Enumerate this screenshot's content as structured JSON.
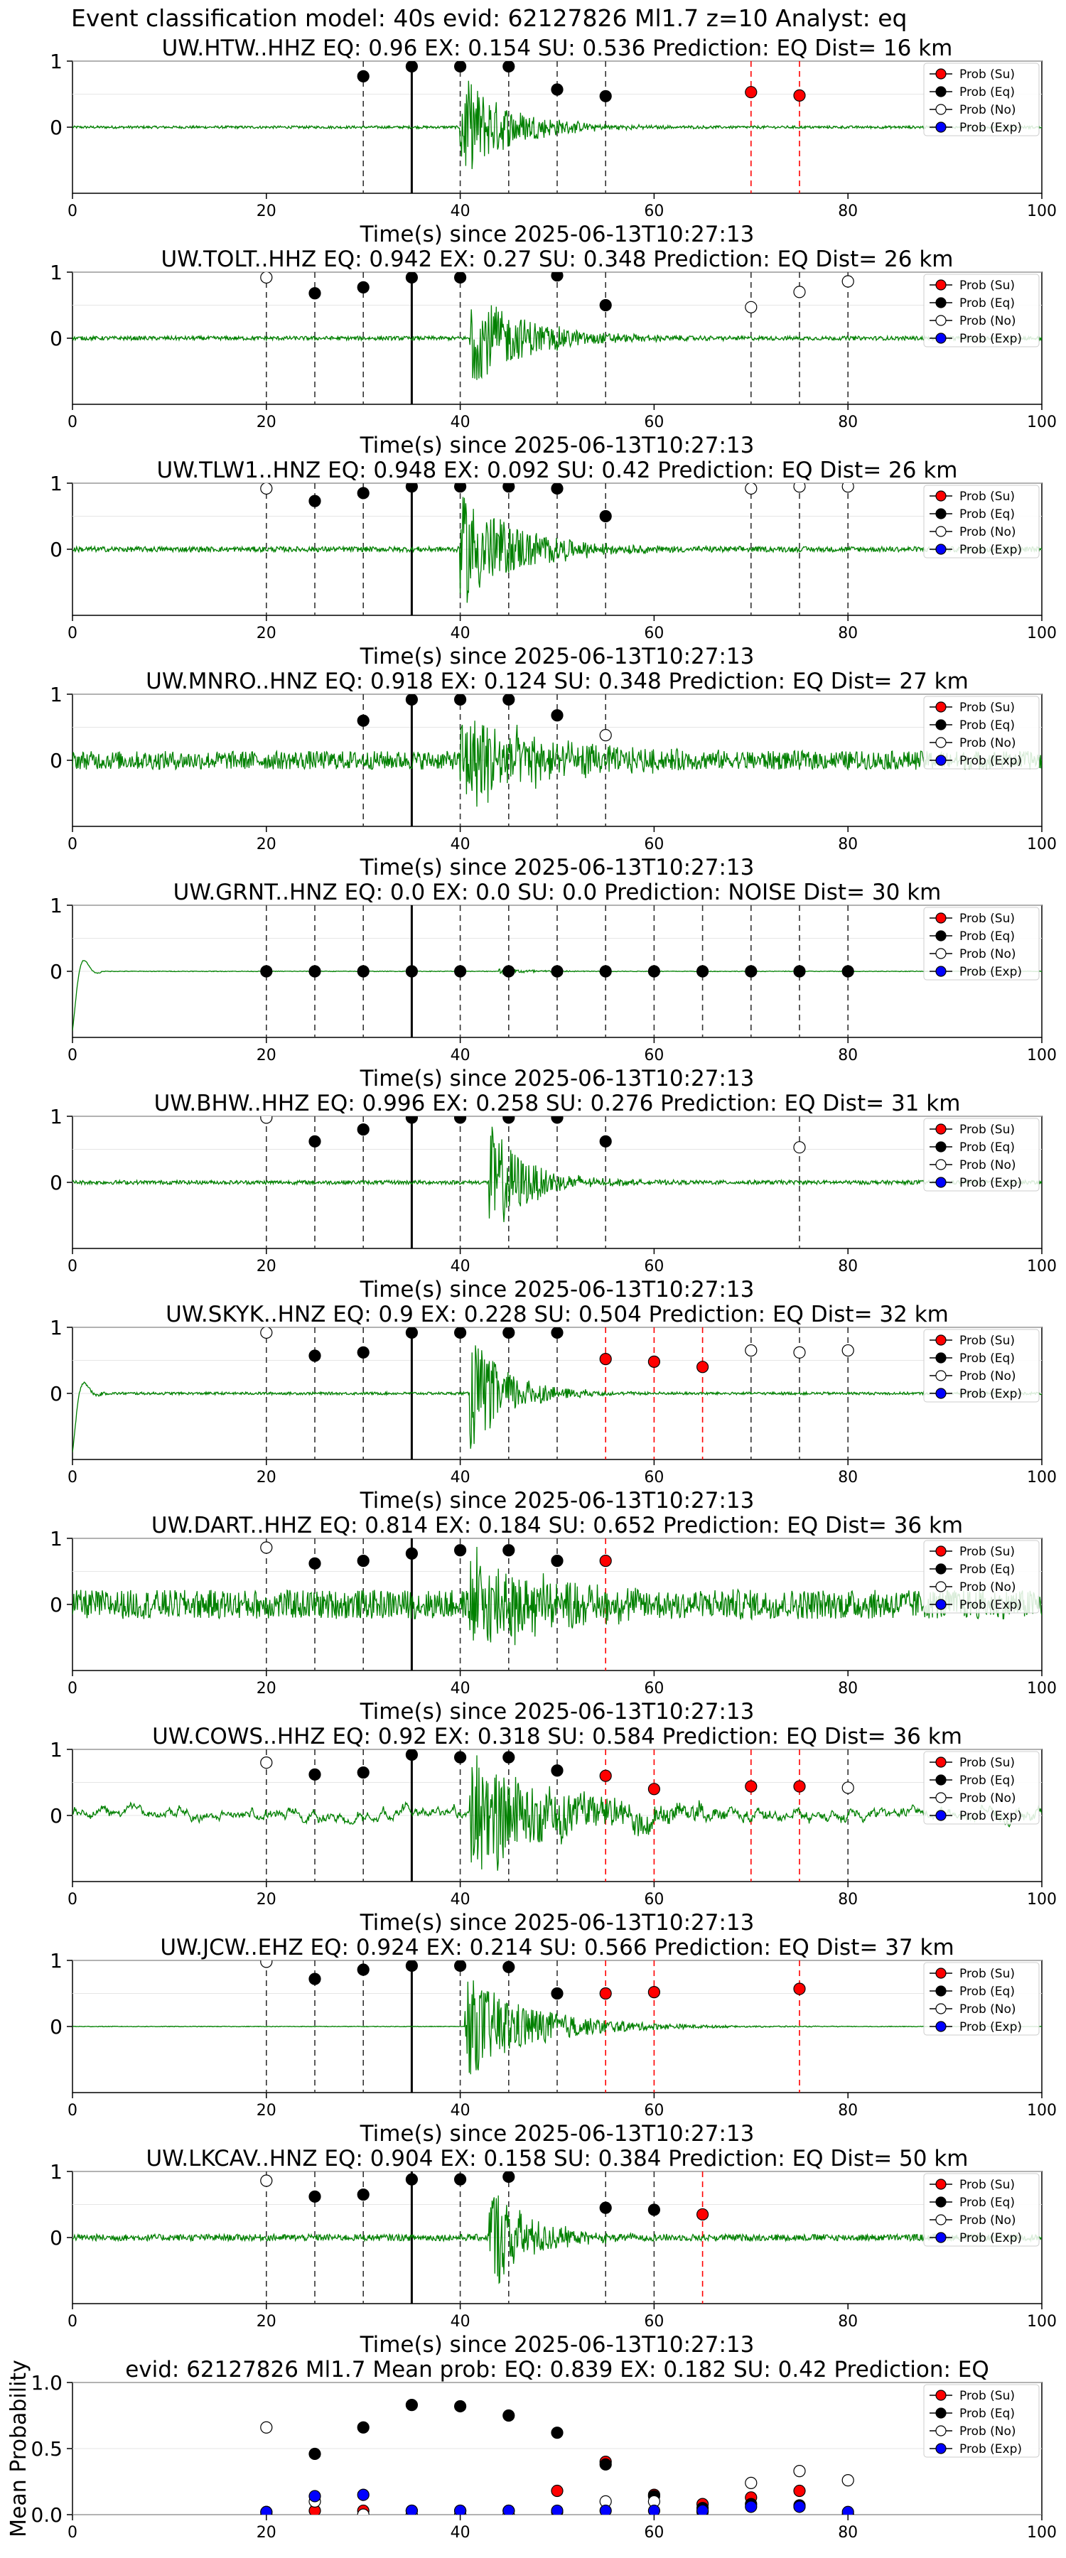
{
  "figure_title": "Event classification model: 40s evid: 62127826 Ml1.7 z=10 Analyst: eq",
  "colors": {
    "trace": "#008000",
    "su": "#ff0000",
    "eq": "#000000",
    "no": "#ffffff",
    "exp": "#0000ff",
    "su_line": "#ff0000",
    "eq_line": "#333333",
    "pick": "#000000"
  },
  "legend": [
    "Prob (Su)",
    "Prob (Eq)",
    "Prob (No)",
    "Prob (Exp)"
  ],
  "chart_data": [
    {
      "type": "scatter",
      "title": "UW.HTW..HHZ   EQ: 0.96  EX: 0.154  SU: 0.536   Prediction: EQ    Dist= 16 km",
      "xlabel": "Time(s) since 2025-06-13T10:27:13",
      "ylabel": "",
      "xlim": [
        0,
        100
      ],
      "ylim": [
        -1,
        1
      ],
      "xticks": [
        "0",
        "20",
        "40",
        "60",
        "80",
        "100"
      ],
      "yticks": [
        "1",
        "0"
      ],
      "pick_time": 35,
      "waveform": {
        "noise": 0.02,
        "onset": 40,
        "amp": 0.85,
        "decay": 5
      },
      "points": [
        {
          "x": 30,
          "y": 0.77,
          "c": "eq"
        },
        {
          "x": 35,
          "y": 0.92,
          "c": "eq"
        },
        {
          "x": 40,
          "y": 0.92,
          "c": "eq"
        },
        {
          "x": 45,
          "y": 0.92,
          "c": "eq"
        },
        {
          "x": 50,
          "y": 0.57,
          "c": "eq"
        },
        {
          "x": 55,
          "y": 0.47,
          "c": "eq"
        },
        {
          "x": 70,
          "y": 0.53,
          "c": "su"
        },
        {
          "x": 75,
          "y": 0.48,
          "c": "su"
        }
      ]
    },
    {
      "type": "scatter",
      "title": "UW.TOLT..HHZ   EQ: 0.942  EX: 0.27  SU: 0.348   Prediction: EQ    Dist= 26 km",
      "xlabel": "Time(s) since 2025-06-13T10:27:13",
      "ylabel": "",
      "xlim": [
        0,
        100
      ],
      "ylim": [
        -1,
        1
      ],
      "xticks": [
        "0",
        "20",
        "40",
        "60",
        "80",
        "100"
      ],
      "yticks": [
        "1",
        "0"
      ],
      "pick_time": 35,
      "waveform": {
        "noise": 0.03,
        "onset": 41,
        "amp": 0.75,
        "decay": 6
      },
      "points": [
        {
          "x": 20,
          "y": 0.92,
          "c": "no"
        },
        {
          "x": 25,
          "y": 0.68,
          "c": "eq"
        },
        {
          "x": 30,
          "y": 0.77,
          "c": "eq"
        },
        {
          "x": 35,
          "y": 0.92,
          "c": "eq"
        },
        {
          "x": 40,
          "y": 0.92,
          "c": "eq"
        },
        {
          "x": 50,
          "y": 0.95,
          "c": "eq"
        },
        {
          "x": 55,
          "y": 0.5,
          "c": "eq"
        },
        {
          "x": 70,
          "y": 0.47,
          "c": "no"
        },
        {
          "x": 75,
          "y": 0.7,
          "c": "no"
        },
        {
          "x": 80,
          "y": 0.86,
          "c": "no"
        }
      ]
    },
    {
      "type": "scatter",
      "title": "UW.TLW1..HNZ   EQ: 0.948  EX: 0.092  SU: 0.42   Prediction: EQ    Dist= 26 km",
      "xlabel": "Time(s) since 2025-06-13T10:27:13",
      "ylabel": "",
      "xlim": [
        0,
        100
      ],
      "ylim": [
        -1,
        1
      ],
      "xticks": [
        "0",
        "20",
        "40",
        "60",
        "80",
        "100"
      ],
      "yticks": [
        "1",
        "0"
      ],
      "pick_time": 35,
      "waveform": {
        "noise": 0.04,
        "onset": 40,
        "amp": 0.9,
        "decay": 6
      },
      "points": [
        {
          "x": 20,
          "y": 0.92,
          "c": "no"
        },
        {
          "x": 25,
          "y": 0.73,
          "c": "eq"
        },
        {
          "x": 30,
          "y": 0.85,
          "c": "eq"
        },
        {
          "x": 35,
          "y": 0.95,
          "c": "eq"
        },
        {
          "x": 40,
          "y": 0.95,
          "c": "eq"
        },
        {
          "x": 45,
          "y": 0.95,
          "c": "eq"
        },
        {
          "x": 50,
          "y": 0.92,
          "c": "eq"
        },
        {
          "x": 55,
          "y": 0.5,
          "c": "eq"
        },
        {
          "x": 70,
          "y": 0.92,
          "c": "no"
        },
        {
          "x": 75,
          "y": 0.95,
          "c": "no"
        },
        {
          "x": 80,
          "y": 0.95,
          "c": "no"
        }
      ]
    },
    {
      "type": "scatter",
      "title": "UW.MNRO..HNZ   EQ: 0.918  EX: 0.124  SU: 0.348   Prediction: EQ    Dist= 27 km",
      "xlabel": "Time(s) since 2025-06-13T10:27:13",
      "ylabel": "",
      "xlim": [
        0,
        100
      ],
      "ylim": [
        -1,
        1
      ],
      "xticks": [
        "0",
        "20",
        "40",
        "60",
        "80",
        "100"
      ],
      "yticks": [
        "1",
        "0"
      ],
      "pick_time": 35,
      "waveform": {
        "noise": 0.14,
        "onset": 40,
        "amp": 0.85,
        "decay": 8
      },
      "points": [
        {
          "x": 30,
          "y": 0.6,
          "c": "eq"
        },
        {
          "x": 35,
          "y": 0.92,
          "c": "eq"
        },
        {
          "x": 40,
          "y": 0.92,
          "c": "eq"
        },
        {
          "x": 45,
          "y": 0.92,
          "c": "eq"
        },
        {
          "x": 50,
          "y": 0.68,
          "c": "eq"
        },
        {
          "x": 55,
          "y": 0.38,
          "c": "no"
        }
      ]
    },
    {
      "type": "scatter",
      "title": "UW.GRNT..HNZ   EQ: 0.0  EX: 0.0  SU: 0.0   Prediction: NOISE    Dist= 30 km",
      "xlabel": "Time(s) since 2025-06-13T10:27:13",
      "ylabel": "",
      "xlim": [
        0,
        100
      ],
      "ylim": [
        -1,
        1
      ],
      "xticks": [
        "0",
        "20",
        "40",
        "60",
        "80",
        "100"
      ],
      "yticks": [
        "1",
        "0"
      ],
      "pick_time": 35,
      "waveform": {
        "noise": 0.005,
        "onset": 44,
        "amp": 0.05,
        "decay": 4,
        "startup": true
      },
      "points": [
        {
          "x": 20,
          "y": 0,
          "c": "eq"
        },
        {
          "x": 25,
          "y": 0,
          "c": "eq"
        },
        {
          "x": 30,
          "y": 0,
          "c": "eq"
        },
        {
          "x": 35,
          "y": 0,
          "c": "eq"
        },
        {
          "x": 40,
          "y": 0,
          "c": "eq"
        },
        {
          "x": 45,
          "y": 0,
          "c": "eq"
        },
        {
          "x": 50,
          "y": 0,
          "c": "eq"
        },
        {
          "x": 55,
          "y": 0,
          "c": "eq"
        },
        {
          "x": 60,
          "y": 0,
          "c": "eq"
        },
        {
          "x": 65,
          "y": 0,
          "c": "eq"
        },
        {
          "x": 70,
          "y": 0,
          "c": "eq"
        },
        {
          "x": 75,
          "y": 0,
          "c": "eq"
        },
        {
          "x": 80,
          "y": 0,
          "c": "eq"
        }
      ]
    },
    {
      "type": "scatter",
      "title": "UW.BHW..HHZ   EQ: 0.996  EX: 0.258  SU: 0.276   Prediction: EQ    Dist= 31 km",
      "xlabel": "Time(s) since 2025-06-13T10:27:13",
      "ylabel": "",
      "xlim": [
        0,
        100
      ],
      "ylim": [
        -1,
        1
      ],
      "xticks": [
        "0",
        "20",
        "40",
        "60",
        "80",
        "100"
      ],
      "yticks": [
        "1",
        "0"
      ],
      "pick_time": 35,
      "waveform": {
        "noise": 0.03,
        "onset": 43,
        "amp": 0.9,
        "decay": 4
      },
      "points": [
        {
          "x": 20,
          "y": 0.98,
          "c": "no"
        },
        {
          "x": 25,
          "y": 0.62,
          "c": "eq"
        },
        {
          "x": 30,
          "y": 0.8,
          "c": "eq"
        },
        {
          "x": 35,
          "y": 0.98,
          "c": "eq"
        },
        {
          "x": 40,
          "y": 0.98,
          "c": "eq"
        },
        {
          "x": 45,
          "y": 0.98,
          "c": "eq"
        },
        {
          "x": 50,
          "y": 0.98,
          "c": "eq"
        },
        {
          "x": 55,
          "y": 0.62,
          "c": "eq"
        },
        {
          "x": 75,
          "y": 0.53,
          "c": "no"
        }
      ]
    },
    {
      "type": "scatter",
      "title": "UW.SKYK..HNZ   EQ: 0.9  EX: 0.228  SU: 0.504   Prediction: EQ    Dist= 32 km",
      "xlabel": "Time(s) since 2025-06-13T10:27:13",
      "ylabel": "",
      "xlim": [
        0,
        100
      ],
      "ylim": [
        -1,
        1
      ],
      "xticks": [
        "0",
        "20",
        "40",
        "60",
        "80",
        "100"
      ],
      "yticks": [
        "1",
        "0"
      ],
      "pick_time": 35,
      "waveform": {
        "noise": 0.02,
        "onset": 41,
        "amp": 0.9,
        "decay": 4,
        "startup": true
      },
      "points": [
        {
          "x": 20,
          "y": 0.92,
          "c": "no"
        },
        {
          "x": 25,
          "y": 0.57,
          "c": "eq"
        },
        {
          "x": 30,
          "y": 0.62,
          "c": "eq"
        },
        {
          "x": 35,
          "y": 0.92,
          "c": "eq"
        },
        {
          "x": 40,
          "y": 0.92,
          "c": "eq"
        },
        {
          "x": 45,
          "y": 0.92,
          "c": "eq"
        },
        {
          "x": 50,
          "y": 0.92,
          "c": "eq"
        },
        {
          "x": 55,
          "y": 0.52,
          "c": "su"
        },
        {
          "x": 60,
          "y": 0.48,
          "c": "su"
        },
        {
          "x": 65,
          "y": 0.4,
          "c": "su"
        },
        {
          "x": 70,
          "y": 0.65,
          "c": "no"
        },
        {
          "x": 75,
          "y": 0.62,
          "c": "no"
        },
        {
          "x": 80,
          "y": 0.65,
          "c": "no"
        }
      ]
    },
    {
      "type": "scatter",
      "title": "UW.DART..HHZ   EQ: 0.814  EX: 0.184  SU: 0.652   Prediction: EQ    Dist= 36 km",
      "xlabel": "Time(s) since 2025-06-13T10:27:13",
      "ylabel": "",
      "xlim": [
        0,
        100
      ],
      "ylim": [
        -1,
        1
      ],
      "xticks": [
        "0",
        "20",
        "40",
        "60",
        "80",
        "100"
      ],
      "yticks": [
        "1",
        "0"
      ],
      "pick_time": 35,
      "waveform": {
        "noise": 0.22,
        "onset": 41,
        "amp": 0.8,
        "decay": 8
      },
      "points": [
        {
          "x": 20,
          "y": 0.86,
          "c": "no"
        },
        {
          "x": 25,
          "y": 0.62,
          "c": "eq"
        },
        {
          "x": 30,
          "y": 0.66,
          "c": "eq"
        },
        {
          "x": 35,
          "y": 0.77,
          "c": "eq"
        },
        {
          "x": 40,
          "y": 0.82,
          "c": "eq"
        },
        {
          "x": 45,
          "y": 0.82,
          "c": "eq"
        },
        {
          "x": 50,
          "y": 0.66,
          "c": "eq"
        },
        {
          "x": 55,
          "y": 0.66,
          "c": "su"
        }
      ]
    },
    {
      "type": "scatter",
      "title": "UW.COWS..HHZ   EQ: 0.92  EX: 0.318  SU: 0.584   Prediction: EQ    Dist= 36 km",
      "xlabel": "Time(s) since 2025-06-13T10:27:13",
      "ylabel": "",
      "xlim": [
        0,
        100
      ],
      "ylim": [
        -1,
        1
      ],
      "xticks": [
        "0",
        "20",
        "40",
        "60",
        "80",
        "100"
      ],
      "yticks": [
        "1",
        "0"
      ],
      "pick_time": 35,
      "waveform": {
        "noise": 0.25,
        "onset": 41,
        "amp": 0.95,
        "decay": 10,
        "lowfreq": true
      },
      "points": [
        {
          "x": 20,
          "y": 0.8,
          "c": "no"
        },
        {
          "x": 25,
          "y": 0.62,
          "c": "eq"
        },
        {
          "x": 30,
          "y": 0.65,
          "c": "eq"
        },
        {
          "x": 35,
          "y": 0.92,
          "c": "eq"
        },
        {
          "x": 40,
          "y": 0.88,
          "c": "eq"
        },
        {
          "x": 45,
          "y": 0.88,
          "c": "eq"
        },
        {
          "x": 50,
          "y": 0.68,
          "c": "eq"
        },
        {
          "x": 55,
          "y": 0.6,
          "c": "su"
        },
        {
          "x": 60,
          "y": 0.4,
          "c": "su"
        },
        {
          "x": 70,
          "y": 0.44,
          "c": "su"
        },
        {
          "x": 75,
          "y": 0.44,
          "c": "su"
        },
        {
          "x": 80,
          "y": 0.42,
          "c": "no"
        }
      ]
    },
    {
      "type": "scatter",
      "title": "UW.JCW..EHZ   EQ: 0.924  EX: 0.214  SU: 0.566   Prediction: EQ    Dist= 37 km",
      "xlabel": "Time(s) since 2025-06-13T10:27:13",
      "ylabel": "",
      "xlim": [
        0,
        100
      ],
      "ylim": [
        -1,
        1
      ],
      "xticks": [
        "0",
        "20",
        "40",
        "60",
        "80",
        "100"
      ],
      "yticks": [
        "1",
        "0"
      ],
      "pick_time": 35,
      "waveform": {
        "noise": 0.005,
        "onset": 40.5,
        "amp": 0.8,
        "decay": 7
      },
      "points": [
        {
          "x": 20,
          "y": 0.98,
          "c": "no"
        },
        {
          "x": 25,
          "y": 0.72,
          "c": "eq"
        },
        {
          "x": 30,
          "y": 0.86,
          "c": "eq"
        },
        {
          "x": 35,
          "y": 0.92,
          "c": "eq"
        },
        {
          "x": 40,
          "y": 0.92,
          "c": "eq"
        },
        {
          "x": 45,
          "y": 0.9,
          "c": "eq"
        },
        {
          "x": 50,
          "y": 0.5,
          "c": "eq"
        },
        {
          "x": 55,
          "y": 0.5,
          "c": "su"
        },
        {
          "x": 60,
          "y": 0.52,
          "c": "su"
        },
        {
          "x": 75,
          "y": 0.57,
          "c": "su"
        }
      ]
    },
    {
      "type": "scatter",
      "title": "UW.LKCAV..HNZ   EQ: 0.904  EX: 0.158  SU: 0.384   Prediction: EQ    Dist= 50 km",
      "xlabel": "Time(s) since 2025-06-13T10:27:13",
      "ylabel": "",
      "xlim": [
        0,
        100
      ],
      "ylim": [
        -1,
        1
      ],
      "xticks": [
        "0",
        "20",
        "40",
        "60",
        "80",
        "100"
      ],
      "yticks": [
        "1",
        "0"
      ],
      "pick_time": 35,
      "waveform": {
        "noise": 0.05,
        "onset": 43,
        "amp": 0.9,
        "decay": 4
      },
      "points": [
        {
          "x": 20,
          "y": 0.86,
          "c": "no"
        },
        {
          "x": 25,
          "y": 0.62,
          "c": "eq"
        },
        {
          "x": 30,
          "y": 0.65,
          "c": "eq"
        },
        {
          "x": 35,
          "y": 0.88,
          "c": "eq"
        },
        {
          "x": 40,
          "y": 0.88,
          "c": "eq"
        },
        {
          "x": 45,
          "y": 0.92,
          "c": "eq"
        },
        {
          "x": 55,
          "y": 0.45,
          "c": "eq"
        },
        {
          "x": 60,
          "y": 0.42,
          "c": "eq"
        },
        {
          "x": 65,
          "y": 0.35,
          "c": "su"
        }
      ]
    },
    {
      "type": "scatter",
      "title": "evid: 62127826  Ml1.7   Mean prob:   EQ: 0.839  EX: 0.182  SU: 0.42   Prediction: EQ",
      "xlabel": "",
      "ylabel": "Mean Probability",
      "xlim": [
        0,
        100
      ],
      "ylim": [
        0,
        1
      ],
      "xticks": [
        "0",
        "20",
        "40",
        "60",
        "80",
        "100"
      ],
      "yticks": [
        "1.0",
        "0.5",
        "0.0"
      ],
      "series": [
        {
          "name": "Prob (Su)",
          "c": "su",
          "x": [
            20,
            25,
            30,
            35,
            40,
            45,
            50,
            55,
            60,
            65,
            70,
            75,
            80
          ],
          "y": [
            0.02,
            0.03,
            0.03,
            0.03,
            0.03,
            0.03,
            0.18,
            0.4,
            0.15,
            0.08,
            0.13,
            0.18,
            0.0
          ]
        },
        {
          "name": "Prob (Eq)",
          "c": "eq",
          "x": [
            20,
            25,
            30,
            35,
            40,
            45,
            50,
            55,
            60,
            65,
            70,
            75,
            80
          ],
          "y": [
            0.0,
            0.46,
            0.66,
            0.83,
            0.82,
            0.75,
            0.62,
            0.38,
            0.14,
            0.05,
            0.08,
            0.07,
            0.0
          ]
        },
        {
          "name": "Prob (No)",
          "c": "no",
          "x": [
            20,
            25,
            30,
            35,
            40,
            45,
            50,
            55,
            60,
            65,
            70,
            75,
            80
          ],
          "y": [
            0.66,
            0.1,
            0.0,
            0.0,
            0.0,
            0.0,
            0.02,
            0.1,
            0.1,
            0.02,
            0.24,
            0.33,
            0.26
          ]
        },
        {
          "name": "Prob (Exp)",
          "c": "exp",
          "x": [
            20,
            25,
            30,
            35,
            40,
            45,
            50,
            55,
            60,
            65,
            70,
            75,
            80
          ],
          "y": [
            0.02,
            0.14,
            0.15,
            0.03,
            0.03,
            0.03,
            0.03,
            0.03,
            0.03,
            0.03,
            0.06,
            0.06,
            0.02
          ]
        }
      ]
    }
  ]
}
